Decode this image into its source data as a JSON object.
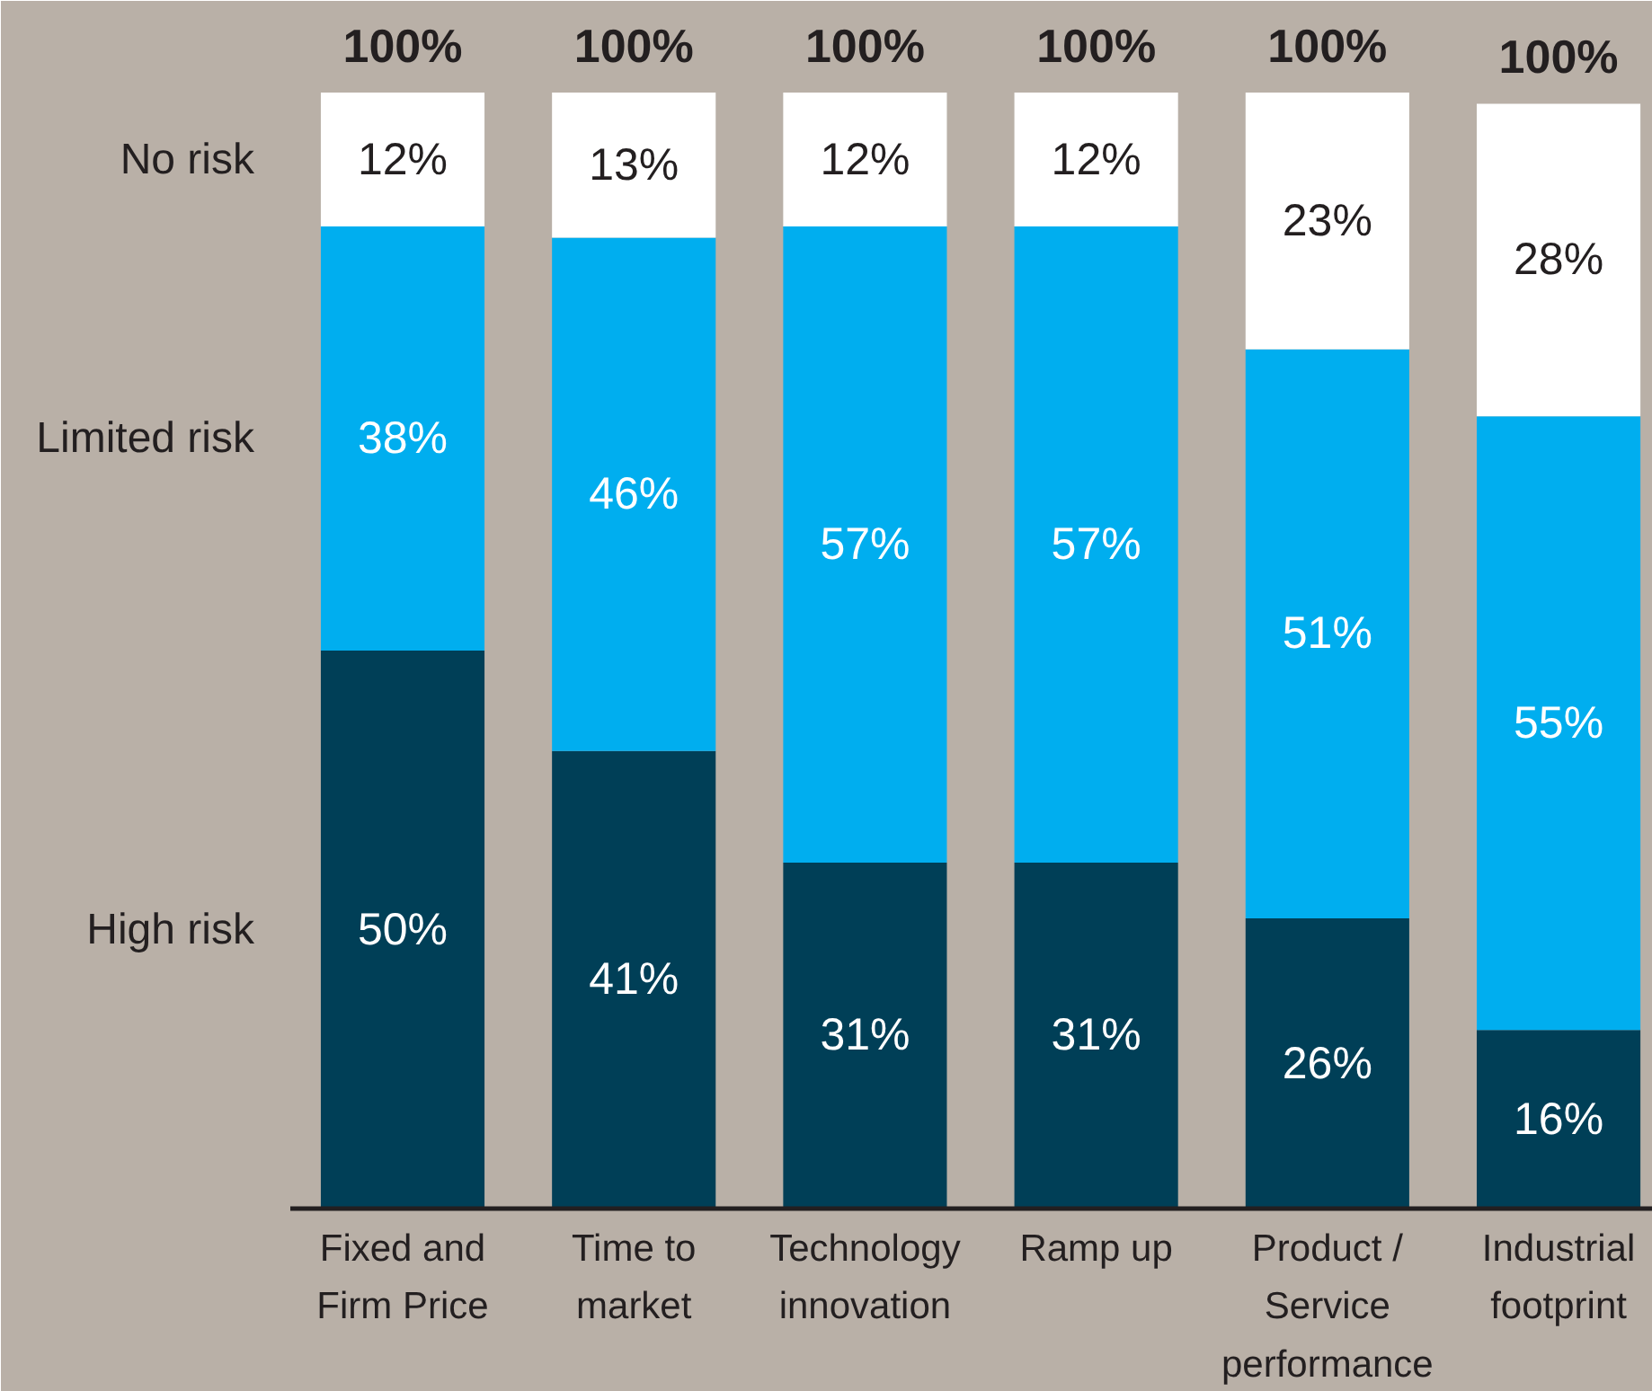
{
  "chart_data": {
    "type": "bar",
    "stacked": true,
    "categories": [
      "Fixed and Firm Price",
      "Time to market",
      "Technology innovation",
      "Ramp up",
      "Product / Service performance",
      "Industrial footprint"
    ],
    "series": [
      {
        "name": "High risk",
        "color": "#003f57",
        "values": [
          50,
          41,
          31,
          31,
          26,
          16
        ],
        "value_labels": [
          "50%",
          "41%",
          "31%",
          "31%",
          "26%",
          "16%"
        ]
      },
      {
        "name": "Limited risk",
        "color": "#00aeef",
        "values": [
          38,
          46,
          57,
          57,
          51,
          55
        ],
        "value_labels": [
          "38%",
          "46%",
          "57%",
          "57%",
          "51%",
          "55%"
        ]
      },
      {
        "name": "No risk",
        "color": "#ffffff",
        "values": [
          12,
          13,
          12,
          12,
          23,
          28
        ],
        "value_labels": [
          "12%",
          "13%",
          "12%",
          "12%",
          "23%",
          "28%"
        ]
      }
    ],
    "totals": [
      "100%",
      "100%",
      "100%",
      "100%",
      "100%",
      "100%"
    ],
    "ylim": [
      0,
      100
    ]
  }
}
